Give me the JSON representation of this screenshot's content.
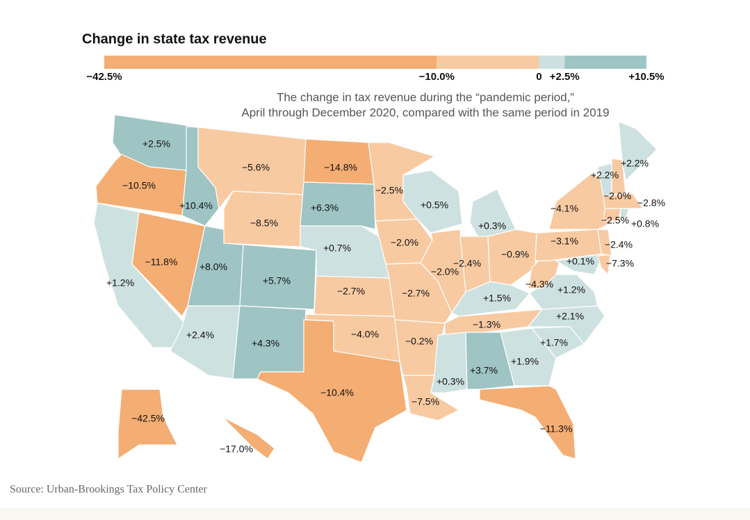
{
  "title": "Change in state tax revenue",
  "subtitle": [
    "The change in tax revenue during the “pandemic period,”",
    "April through December 2020, compared with the same period in 2019"
  ],
  "legend": {
    "ticks": [
      {
        "value": -42.5,
        "label": "−42.5%"
      },
      {
        "value": -10.0,
        "label": "−10.0%"
      },
      0,
      {
        "value": 2.5,
        "label": "+2.5%"
      },
      {
        "value": 10.5,
        "label": "+10.5%"
      }
    ],
    "colors": [
      "#f4ad73",
      "#f8caa2",
      "#cde1e0",
      "#9ec4c4"
    ]
  },
  "regions": {
    "values": [
      2.5,
      -10.5,
      1.2,
      -11.8,
      10.4,
      -5.6,
      -8.5,
      8.0,
      5.7,
      2.4,
      4.3,
      -14.8,
      6.3,
      0.7,
      -2.7,
      -4.0,
      -10.4,
      -2.5,
      -2.0,
      -2.7,
      -0.2,
      -7.5,
      0.5,
      -2.0,
      0.3,
      -2.4,
      -0.9,
      1.5,
      -1.3,
      0.3,
      3.7,
      1.9,
      -11.3,
      1.7,
      2.1,
      1.2,
      -4.3,
      -3.1,
      -4.1,
      0.1,
      -7.3,
      -2.4,
      2.2,
      -2.0,
      2.2,
      -2.8,
      -2.5,
      0.8,
      -42.5,
      -17.0
    ],
    "value_labels": [
      "+2.5%",
      "−10.5%",
      "+1.2%",
      "−11.8%",
      "+10.4%",
      "−5.6%",
      "−8.5%",
      "+8.0%",
      "+5.7%",
      "+2.4%",
      "+4.3%",
      "−14.8%",
      "+6.3%",
      "+0.7%",
      "−2.7%",
      "−4.0%",
      "−10.4%",
      "−2.5%",
      "−2.0%",
      "−2.7%",
      "−0.2%",
      "−7.5%",
      "+0.5%",
      "−2.0%",
      "+0.3%",
      "−2.4%",
      "−0.9%",
      "+1.5%",
      "−1.3%",
      "+0.3%",
      "+3.7%",
      "+1.9%",
      "−11.3%",
      "+1.7%",
      "+2.1%",
      "+1.2%",
      "−4.3%",
      "−3.1%",
      "−4.1%",
      "+0.1%",
      "−7.3%",
      "−2.4%",
      "+2.2%",
      "−2.0%",
      "+2.2%",
      "−2.8%",
      "−2.5%",
      "+0.8%",
      "−42.5%",
      "−17.0%"
    ]
  },
  "source": "Source: Urban-Brookings Tax Policy Center"
}
